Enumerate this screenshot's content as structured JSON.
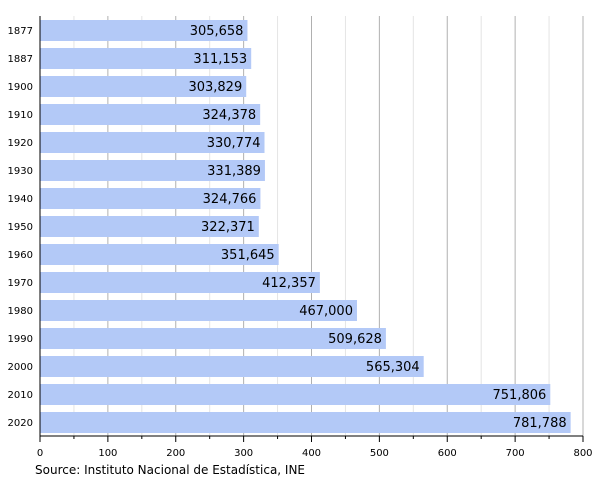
{
  "chart_data": {
    "type": "bar",
    "orientation": "horizontal",
    "categories": [
      "1877",
      "1887",
      "1900",
      "1910",
      "1920",
      "1930",
      "1940",
      "1950",
      "1960",
      "1970",
      "1980",
      "1990",
      "2000",
      "2010",
      "2020"
    ],
    "values": [
      305658,
      311153,
      303829,
      324378,
      330774,
      331389,
      324766,
      322371,
      351645,
      412357,
      467000,
      509628,
      565304,
      751806,
      781788
    ],
    "value_labels": [
      "305,658",
      "311,153",
      "303,829",
      "324,378",
      "330,774",
      "331,389",
      "324,766",
      "322,371",
      "351,645",
      "412,357",
      "467,000",
      "509,628",
      "565,304",
      "751,806",
      "781,788"
    ],
    "x_ticks": [
      "0",
      "100",
      "200",
      "300",
      "400",
      "500",
      "600",
      "700",
      "800"
    ],
    "x_tick_unit": 1000,
    "xlim": [
      0,
      800
    ],
    "grid": true,
    "bar_color": "#b3c9f7",
    "title": "",
    "xlabel": "",
    "ylabel": ""
  },
  "source": "Source: Instituto Nacional de Estadística, INE"
}
